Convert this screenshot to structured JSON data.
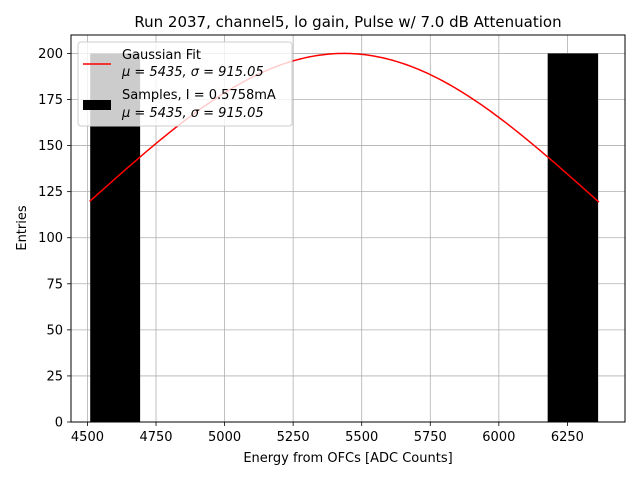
{
  "chart_data": {
    "type": "bar",
    "title": "Run 2037, channel5, lo gain, Pulse w/ 7.0 dB Attenuation",
    "xlabel": "Energy from OFCs [ADC Counts]",
    "ylabel": "Entries",
    "xlim": [
      4440,
      6460
    ],
    "ylim": [
      0,
      210
    ],
    "xticks": [
      4500,
      4750,
      5000,
      5250,
      5500,
      5750,
      6000,
      6250
    ],
    "yticks": [
      0,
      25,
      50,
      75,
      100,
      125,
      150,
      175,
      200
    ],
    "grid": true,
    "legend_position": "top-left",
    "bars": [
      {
        "x0": 4510,
        "x1": 4692,
        "value": 200
      },
      {
        "x0": 6178,
        "x1": 6362,
        "value": 200
      }
    ],
    "fit": {
      "mu": 5435,
      "sigma": 915.05,
      "amplitude": 200,
      "x_range": [
        4508,
        6365
      ]
    },
    "legend": [
      {
        "label": "Gaussian Fit",
        "sublabel": "μ = 5435, σ = 915.05",
        "color": "#ff0000",
        "kind": "line"
      },
      {
        "label": "Samples, I = 0.5758mA",
        "sublabel": "μ = 5435, σ = 915.05",
        "color": "#000000",
        "kind": "patch"
      }
    ]
  }
}
